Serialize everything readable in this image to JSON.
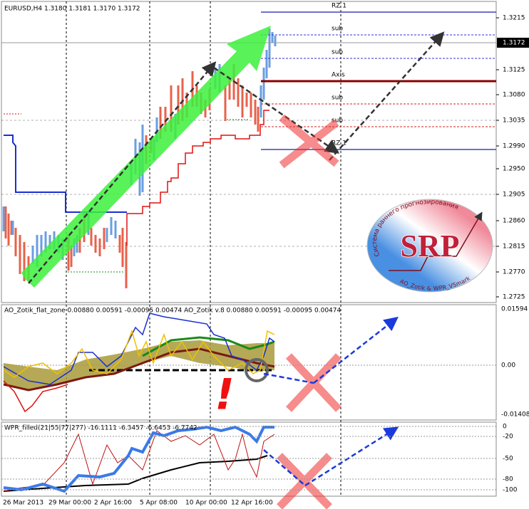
{
  "main_panel": {
    "header": "EURUSD,H4  1.3180 1.3181 1.3170 1.3172",
    "price_ticks": [
      "1.3215",
      "1.3125",
      "1.3080",
      "1.3035",
      "1.2990",
      "1.2950",
      "1.2905",
      "1.2860",
      "1.2815",
      "1.2770",
      "1.2725"
    ],
    "current_price": "1.3172",
    "levels": [
      "RZ 1",
      "sub",
      "sub",
      "Axis",
      "sub",
      "sub",
      "RZ 1"
    ]
  },
  "logo": {
    "title": "SRP",
    "tagline": "Система раннего прогнозирования",
    "authors": "AO_Zotik & WPR_VSmark"
  },
  "ao_panel": {
    "header": "AO_Zotik_flat_zone 0.00880 0.00591 -0.00095 0.00474  AO_Zotik v.8 0.00880 0.00591 -0.00095 0.00474",
    "ticks": [
      "0.01594",
      "0.00",
      "-0.01408"
    ],
    "marker": "!"
  },
  "wpr_panel": {
    "header": "WPR_filled(21|55|77|277) -16.1111 -6.3457 -6.6453 -6.7742",
    "ticks": [
      "0",
      "-20",
      "-50",
      "-80",
      "-100"
    ]
  },
  "time_axis": [
    "26 Mar 2013",
    "29 Mar 00:00",
    "2 Apr 16:00",
    "5 Apr 08:00",
    "10 Apr 00:00",
    "12 Apr 16:00"
  ]
}
